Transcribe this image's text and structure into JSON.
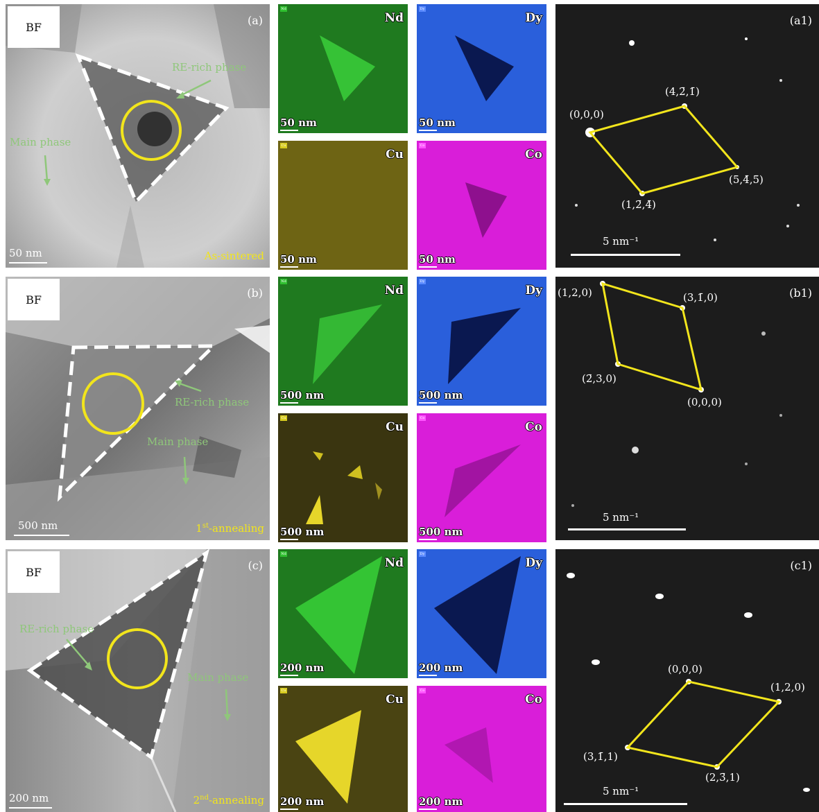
{
  "panel_a": {
    "tag": "(a)",
    "bf": "BF",
    "re_rich": "RE-rich phase",
    "main_phase": "Main phase",
    "scale": "50 nm",
    "condition": "As-sintered"
  },
  "panel_b": {
    "tag": "(b)",
    "bf": "BF",
    "re_rich": "RE-rich phase",
    "main_phase": "Main phase",
    "scale": "500 nm",
    "condition_sup": "st",
    "condition_pre": "1",
    "condition_post": "-annealing"
  },
  "panel_c": {
    "tag": "(c)",
    "bf": "BF",
    "re_rich": "RE-rich phase",
    "main_phase": "Main phase",
    "scale": "200 nm",
    "condition_sup": "nd",
    "condition_pre": "2",
    "condition_post": "-annealing"
  },
  "maps_a": {
    "scale": "50 nm",
    "elements": [
      {
        "name": "Nd",
        "chip": "Nd",
        "color": "#1f7a1f"
      },
      {
        "name": "Dy",
        "chip": "Dy",
        "color": "#2a5fdb"
      },
      {
        "name": "Cu",
        "chip": "Cu",
        "color": "#6e6414"
      },
      {
        "name": "Co",
        "chip": "Co",
        "color": "#d91ed9"
      }
    ]
  },
  "maps_b": {
    "scale": "500 nm",
    "elements": [
      {
        "name": "Nd",
        "chip": "Nd",
        "color": "#1f7a1f"
      },
      {
        "name": "Dy",
        "chip": "Dy",
        "color": "#2a5fdb"
      },
      {
        "name": "Cu",
        "chip": "Cu",
        "color": "#3a3510"
      },
      {
        "name": "Co",
        "chip": "Co",
        "color": "#d91ed9"
      }
    ]
  },
  "maps_c": {
    "scale": "200 nm",
    "elements": [
      {
        "name": "Nd",
        "chip": "Nd",
        "color": "#1f7a1f"
      },
      {
        "name": "Dy",
        "chip": "Dy",
        "color": "#2a5fdb"
      },
      {
        "name": "Cu",
        "chip": "Cu",
        "color": "#4a4412"
      },
      {
        "name": "Co",
        "chip": "Co",
        "color": "#d91ed9"
      }
    ]
  },
  "saed_a1": {
    "tag": "(a1)",
    "scale": "5 nm⁻¹",
    "spots": [
      "(0,0,0)",
      "(4,2̄,1̄)",
      "(5,4̄,5̄)",
      "(1,2̄,4̄)"
    ]
  },
  "saed_b1": {
    "tag": "(b1)",
    "scale": "5 nm⁻¹",
    "spots": [
      "(1,2,0)",
      "(3,1̄,0)",
      "(0,0,0)",
      "(2̄,3,0)"
    ]
  },
  "saed_c1": {
    "tag": "(c1)",
    "scale": "5 nm⁻¹",
    "spots": [
      "(0,0,0)",
      "(1,2,0)",
      "(2,3̄,1)",
      "(3,1̄,1)"
    ]
  },
  "colors": {
    "outline_yellow": "#f2e51c",
    "note_green": "#8fc77a"
  }
}
